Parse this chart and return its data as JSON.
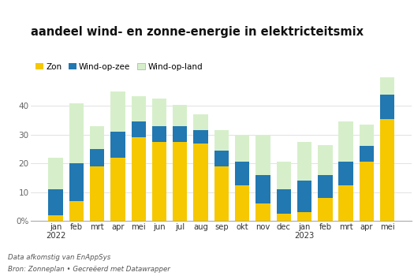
{
  "title": "aandeel wind- en zonne-energie in elektricteitsmix",
  "months": [
    "jan\n2022",
    "feb",
    "mrt",
    "apr",
    "mei",
    "jun",
    "jul",
    "aug",
    "sep",
    "okt",
    "nov",
    "dec",
    "jan\n2023",
    "feb",
    "mrt",
    "apr",
    "mei"
  ],
  "zon": [
    2.0,
    7.0,
    19.0,
    22.0,
    29.0,
    27.5,
    27.5,
    27.0,
    19.0,
    12.5,
    6.0,
    2.5,
    3.0,
    8.0,
    12.5,
    20.5,
    35.5
  ],
  "wind_zee": [
    9.0,
    13.0,
    6.0,
    9.0,
    5.5,
    5.5,
    5.5,
    4.5,
    5.5,
    8.0,
    10.0,
    8.5,
    11.0,
    8.0,
    8.0,
    5.5,
    8.5
  ],
  "wind_land_total": [
    22.0,
    41.0,
    33.0,
    45.0,
    43.5,
    42.5,
    40.5,
    37.0,
    31.5,
    30.0,
    30.0,
    20.5,
    27.5,
    26.5,
    34.5,
    33.5,
    50.0
  ],
  "color_zon": "#F5C800",
  "color_wind_zee": "#2278B0",
  "color_wind_land": "#D6EFCA",
  "ylim": [
    0,
    50
  ],
  "yticks": [
    0,
    10,
    20,
    30,
    40
  ],
  "bar_width": 0.7,
  "footnote1": "Data afkomstig van EnAppSys",
  "footnote2": "Bron: Zonneplan • Gecreëerd met Datawrapper"
}
